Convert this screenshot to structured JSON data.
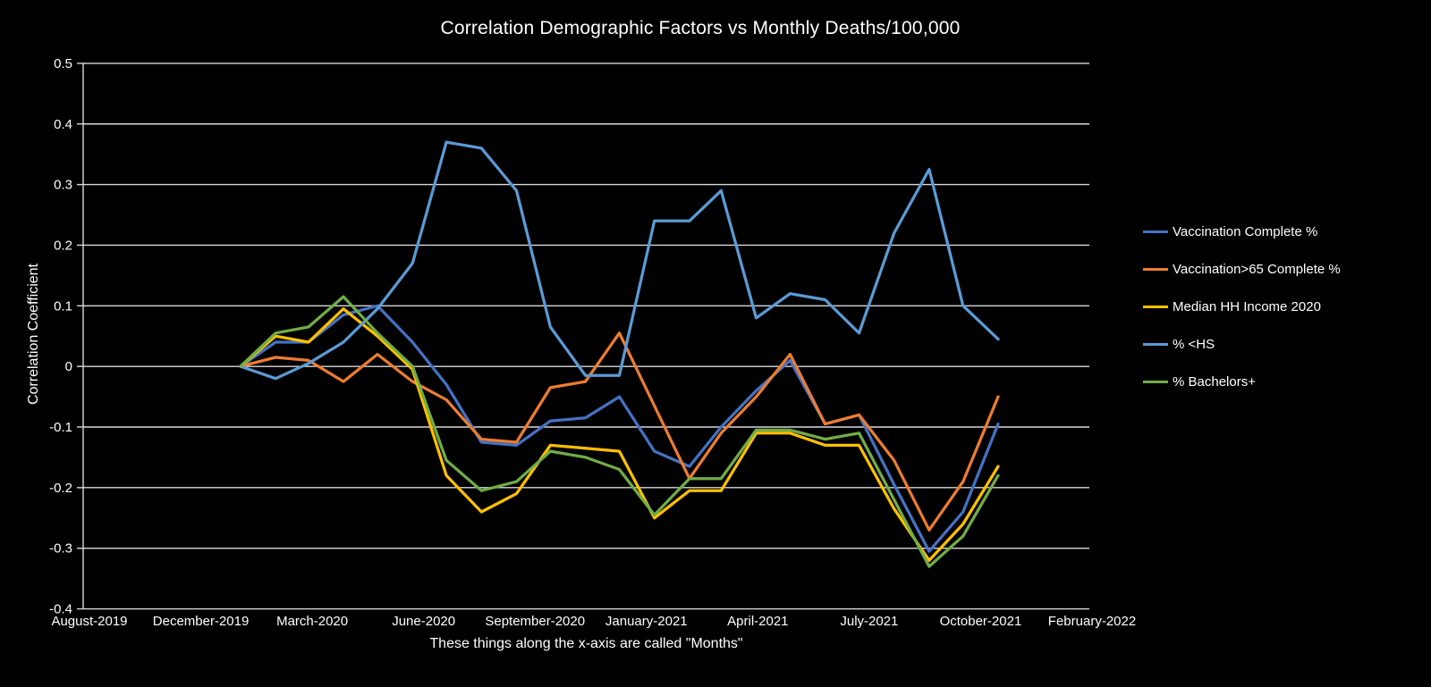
{
  "title": "Correlation Demographic Factors vs Monthly Deaths/100,000",
  "y_axis": {
    "title": "Correlation Coefficient",
    "tick_labels": [
      "0.5",
      "0.4",
      "0.3",
      "0.2",
      "0.1",
      "0",
      "-0.1",
      "-0.2",
      "-0.3",
      "-0.4"
    ]
  },
  "x_axis": {
    "title": "These things  along the x-axis are called \"Months\"",
    "tick_labels": [
      "August-2019",
      "December-2019",
      "March-2020",
      "June-2020",
      "September-2020",
      "January-2021",
      "April-2021",
      "July-2021",
      "October-2021",
      "February-2022"
    ]
  },
  "colors": {
    "background": "#000000",
    "gridline": "#d9d9d9",
    "axis_line": "#d9d9d9",
    "text": "#ffffff"
  },
  "chart_data": {
    "type": "line",
    "title": "Correlation Demographic Factors vs Monthly Deaths/100,000",
    "xlabel": "These things  along the x-axis are called \"Months\"",
    "ylabel": "Correlation Coefficient",
    "ylim": [
      -0.4,
      0.5
    ],
    "y_major_step": 0.1,
    "grid": true,
    "legend_position": "right",
    "x": [
      "January-2020",
      "February-2020",
      "March-2020",
      "April-2020",
      "May-2020",
      "June-2020",
      "July-2020",
      "August-2020",
      "September-2020",
      "October-2020",
      "November-2020",
      "December-2020",
      "January-2021",
      "February-2021",
      "March-2021",
      "April-2021",
      "May-2021",
      "June-2021",
      "July-2021",
      "August-2021",
      "September-2021",
      "October-2021",
      "November-2021"
    ],
    "x_day_offsets": [
      0,
      31,
      60,
      91,
      121,
      152,
      182,
      213,
      244,
      274,
      305,
      335,
      366,
      397,
      425,
      456,
      486,
      517,
      547,
      578,
      609,
      639,
      670
    ],
    "series": [
      {
        "name": "Vaccination Complete %",
        "color": "#4472C4",
        "values": [
          0,
          0.04,
          0.04,
          0.085,
          0.1,
          0.04,
          -0.03,
          -0.125,
          -0.13,
          -0.09,
          -0.085,
          -0.05,
          -0.14,
          -0.165,
          -0.1,
          -0.04,
          0.01,
          -0.095,
          -0.08,
          -0.195,
          -0.305,
          -0.24,
          -0.095
        ]
      },
      {
        "name": "Vaccination>65 Complete %",
        "color": "#ED7D31",
        "values": [
          0,
          0.015,
          0.01,
          -0.025,
          0.02,
          -0.025,
          -0.055,
          -0.12,
          -0.125,
          -0.035,
          -0.025,
          0.055,
          -0.065,
          -0.185,
          -0.11,
          -0.05,
          0.02,
          -0.095,
          -0.08,
          -0.155,
          -0.27,
          -0.19,
          -0.05
        ]
      },
      {
        "name": "Median HH Income 2020",
        "color": "#FFC000",
        "values": [
          0,
          0.05,
          0.04,
          0.095,
          0.05,
          -0.005,
          -0.18,
          -0.24,
          -0.21,
          -0.13,
          -0.135,
          -0.14,
          -0.25,
          -0.205,
          -0.205,
          -0.11,
          -0.11,
          -0.13,
          -0.13,
          -0.235,
          -0.32,
          -0.26,
          -0.165
        ]
      },
      {
        "name": "% <HS",
        "color": "#5B9BD5",
        "values": [
          0,
          -0.02,
          0.005,
          0.04,
          0.095,
          0.17,
          0.37,
          0.36,
          0.29,
          0.065,
          -0.015,
          -0.015,
          0.24,
          0.24,
          0.29,
          0.08,
          0.12,
          0.11,
          0.055,
          0.22,
          0.325,
          0.1,
          0.045
        ]
      },
      {
        "name": "% Bachelors+",
        "color": "#70AD47",
        "values": [
          0,
          0.055,
          0.065,
          0.115,
          0.055,
          0.0,
          -0.155,
          -0.205,
          -0.19,
          -0.14,
          -0.15,
          -0.17,
          -0.245,
          -0.185,
          -0.185,
          -0.105,
          -0.105,
          -0.12,
          -0.11,
          -0.22,
          -0.33,
          -0.28,
          -0.18
        ]
      }
    ]
  }
}
